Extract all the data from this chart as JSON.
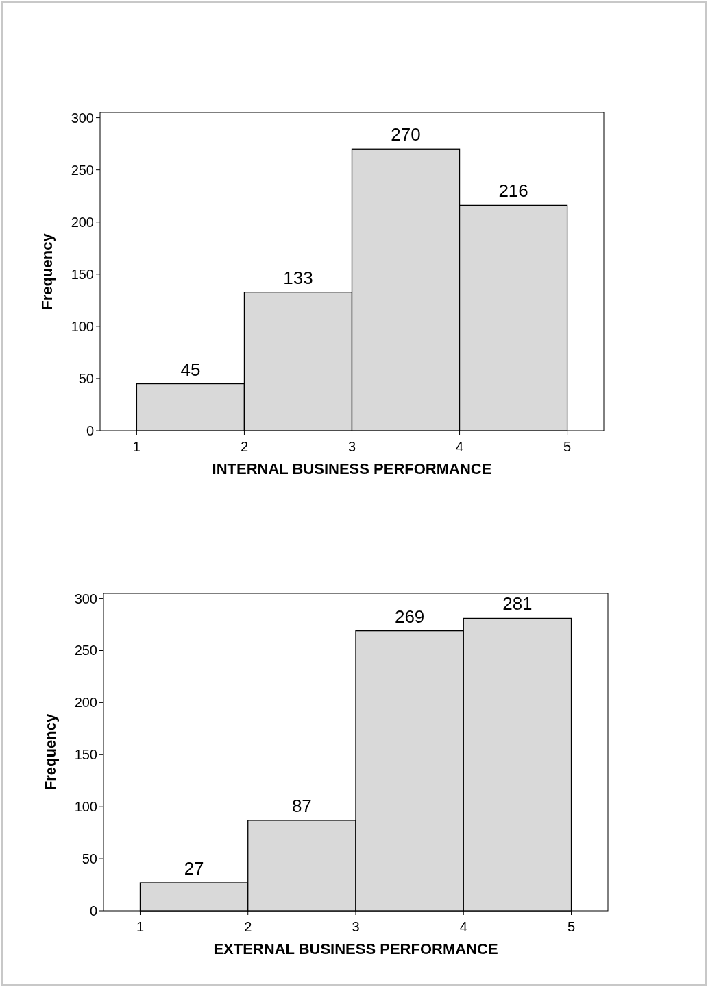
{
  "chart_data": [
    {
      "type": "histogram",
      "xlabel": "INTERNAL BUSINESS PERFORMANCE",
      "ylabel": "Frequency",
      "bins": [
        1,
        2,
        3,
        4,
        5
      ],
      "values": [
        45,
        133,
        270,
        216
      ],
      "color": "#d9d9d9",
      "data_labels": true,
      "xlim": [
        0.66,
        5.34
      ],
      "xticks": [
        1,
        2,
        3,
        4,
        5
      ],
      "ylim": [
        0,
        305
      ],
      "yticks": [
        0,
        50,
        100,
        150,
        200,
        250,
        300
      ],
      "grid": false
    },
    {
      "type": "histogram",
      "xlabel": "EXTERNAL BUSINESS PERFORMANCE",
      "ylabel": "Frequency",
      "bins": [
        1,
        2,
        3,
        4,
        5
      ],
      "values": [
        27,
        87,
        269,
        281
      ],
      "color": "#d9d9d9",
      "data_labels": true,
      "xlim": [
        0.66,
        5.34
      ],
      "xticks": [
        1,
        2,
        3,
        4,
        5
      ],
      "ylim": [
        0,
        305
      ],
      "yticks": [
        0,
        50,
        100,
        150,
        200,
        250,
        300
      ],
      "grid": false
    }
  ]
}
